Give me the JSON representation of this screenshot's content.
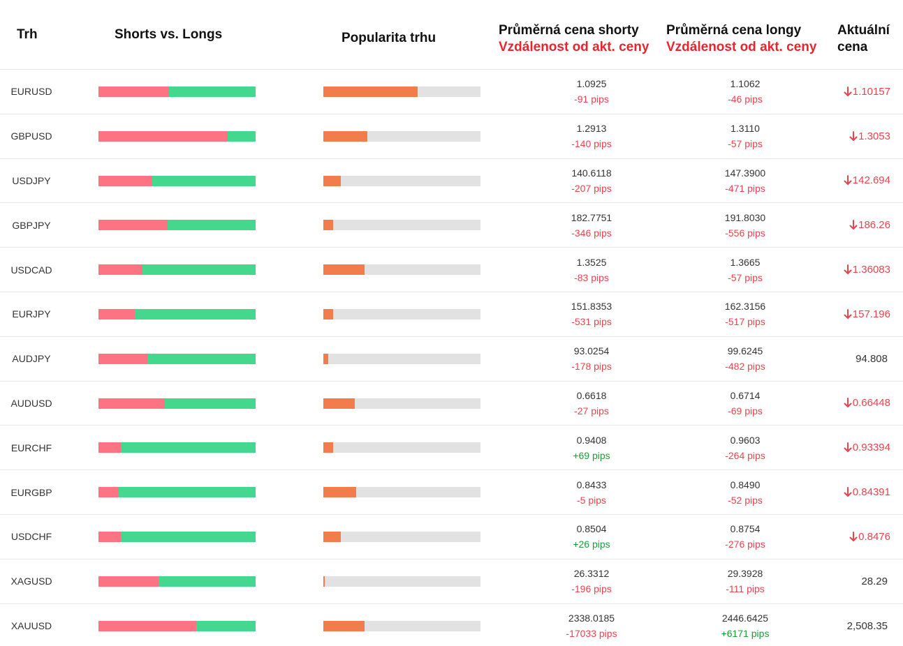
{
  "header": {
    "market": "Trh",
    "shorts_vs_longs": "Shorts vs. Longs",
    "popularity": "Popularita trhu",
    "avg_short_price": "Průměrná cena shorty",
    "avg_short_dist": "Vzdálenost od akt. ceny",
    "avg_long_price": "Průměrná cena longy",
    "avg_long_dist": "Vzdálenost od akt. ceny",
    "current_price_line1": "Aktuální",
    "current_price_line2": "cena"
  },
  "colors": {
    "short": "#fc7384",
    "long": "#44d88e",
    "popularity": "#f37c4c",
    "negative": "#e8434f",
    "positive": "#1a9c38"
  },
  "rows": [
    {
      "symbol": "EURUSD",
      "short_pct": 45,
      "popularity_pct": 60,
      "short_price": "1.0925",
      "short_pips": "-91 pips",
      "short_pips_dir": "neg",
      "long_price": "1.1062",
      "long_pips": "-46 pips",
      "long_pips_dir": "neg",
      "current": "1.10157",
      "trend": "down"
    },
    {
      "symbol": "GBPUSD",
      "short_pct": 82,
      "popularity_pct": 28,
      "short_price": "1.2913",
      "short_pips": "-140 pips",
      "short_pips_dir": "neg",
      "long_price": "1.3110",
      "long_pips": "-57 pips",
      "long_pips_dir": "neg",
      "current": "1.3053",
      "trend": "down"
    },
    {
      "symbol": "USDJPY",
      "short_pct": 34,
      "popularity_pct": 11,
      "short_price": "140.6118",
      "short_pips": "-207 pips",
      "short_pips_dir": "neg",
      "long_price": "147.3900",
      "long_pips": "-471 pips",
      "long_pips_dir": "neg",
      "current": "142.694",
      "trend": "down"
    },
    {
      "symbol": "GBPJPY",
      "short_pct": 44,
      "popularity_pct": 6,
      "short_price": "182.7751",
      "short_pips": "-346 pips",
      "short_pips_dir": "neg",
      "long_price": "191.8030",
      "long_pips": "-556 pips",
      "long_pips_dir": "neg",
      "current": "186.26",
      "trend": "down"
    },
    {
      "symbol": "USDCAD",
      "short_pct": 28,
      "popularity_pct": 26,
      "short_price": "1.3525",
      "short_pips": "-83 pips",
      "short_pips_dir": "neg",
      "long_price": "1.3665",
      "long_pips": "-57 pips",
      "long_pips_dir": "neg",
      "current": "1.36083",
      "trend": "down"
    },
    {
      "symbol": "EURJPY",
      "short_pct": 23,
      "popularity_pct": 6,
      "short_price": "151.8353",
      "short_pips": "-531 pips",
      "short_pips_dir": "neg",
      "long_price": "162.3156",
      "long_pips": "-517 pips",
      "long_pips_dir": "neg",
      "current": "157.196",
      "trend": "down"
    },
    {
      "symbol": "AUDJPY",
      "short_pct": 31,
      "popularity_pct": 3,
      "short_price": "93.0254",
      "short_pips": "-178 pips",
      "short_pips_dir": "neg",
      "long_price": "99.6245",
      "long_pips": "-482 pips",
      "long_pips_dir": "neg",
      "current": "94.808",
      "trend": "flat"
    },
    {
      "symbol": "AUDUSD",
      "short_pct": 42,
      "popularity_pct": 20,
      "short_price": "0.6618",
      "short_pips": "-27 pips",
      "short_pips_dir": "neg",
      "long_price": "0.6714",
      "long_pips": "-69 pips",
      "long_pips_dir": "neg",
      "current": "0.66448",
      "trend": "down"
    },
    {
      "symbol": "EURCHF",
      "short_pct": 14,
      "popularity_pct": 6,
      "short_price": "0.9408",
      "short_pips": "+69 pips",
      "short_pips_dir": "pos",
      "long_price": "0.9603",
      "long_pips": "-264 pips",
      "long_pips_dir": "neg",
      "current": "0.93394",
      "trend": "down"
    },
    {
      "symbol": "EURGBP",
      "short_pct": 13,
      "popularity_pct": 21,
      "short_price": "0.8433",
      "short_pips": "-5 pips",
      "short_pips_dir": "neg",
      "long_price": "0.8490",
      "long_pips": "-52 pips",
      "long_pips_dir": "neg",
      "current": "0.84391",
      "trend": "down"
    },
    {
      "symbol": "USDCHF",
      "short_pct": 14,
      "popularity_pct": 11,
      "short_price": "0.8504",
      "short_pips": "+26 pips",
      "short_pips_dir": "pos",
      "long_price": "0.8754",
      "long_pips": "-276 pips",
      "long_pips_dir": "neg",
      "current": "0.8476",
      "trend": "down"
    },
    {
      "symbol": "XAGUSD",
      "short_pct": 38,
      "popularity_pct": 1,
      "short_price": "26.3312",
      "short_pips": "-196 pips",
      "short_pips_dir": "neg",
      "long_price": "29.3928",
      "long_pips": "-111 pips",
      "long_pips_dir": "neg",
      "current": "28.29",
      "trend": "flat"
    },
    {
      "symbol": "XAUUSD",
      "short_pct": 62,
      "popularity_pct": 26,
      "short_price": "2338.0185",
      "short_pips": "-17033 pips",
      "short_pips_dir": "neg",
      "long_price": "2446.6425",
      "long_pips": "+6171 pips",
      "long_pips_dir": "pos",
      "current": "2,508.35",
      "trend": "flat"
    }
  ]
}
